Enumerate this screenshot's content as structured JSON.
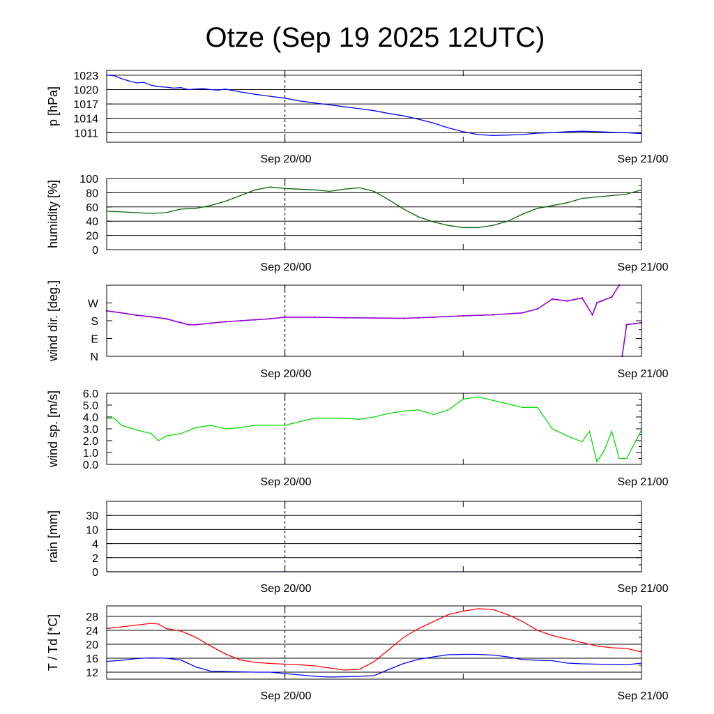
{
  "chart_data": {
    "title": "Otze (Sep 19 2025 12UTC)",
    "x_tick_labels": [
      "Sep 20/00",
      "Sep 21/00"
    ],
    "x_range_hours": [
      0,
      36
    ],
    "x_tick_hours": [
      12,
      24,
      36
    ],
    "panels": [
      {
        "id": "pressure",
        "type": "line",
        "ylabel": "p [hPa]",
        "ylim": [
          1009,
          1024
        ],
        "yticks": [
          1011,
          1014,
          1017,
          1020,
          1023
        ],
        "ytick_labels": [
          "1023",
          "1020",
          "1017",
          "1014",
          "1011"
        ],
        "ytick_values": [
          1023,
          1020,
          1017,
          1014,
          1011
        ],
        "grid": true,
        "series": [
          {
            "name": "p",
            "color": "#0000ff",
            "x": [
              0,
              0.5,
              1,
              1.5,
              2,
              2.5,
              3,
              3.5,
              4,
              4.5,
              5,
              5.5,
              6,
              6.5,
              7,
              7.5,
              8,
              9,
              10,
              11,
              12,
              13,
              14,
              15,
              16,
              17,
              18,
              19,
              20,
              21,
              22,
              23,
              24,
              25,
              26,
              27,
              28,
              29,
              30,
              31,
              32,
              33,
              34,
              35,
              36
            ],
            "values": [
              1023.0,
              1022.9,
              1022.3,
              1021.8,
              1021.4,
              1021.5,
              1020.9,
              1020.6,
              1020.5,
              1020.3,
              1020.4,
              1020.0,
              1020.1,
              1020.2,
              1020.0,
              1019.9,
              1020.1,
              1019.5,
              1019.0,
              1018.6,
              1018.2,
              1017.6,
              1017.2,
              1016.8,
              1016.4,
              1016.0,
              1015.6,
              1015.0,
              1014.5,
              1013.8,
              1013.0,
              1012.0,
              1011.2,
              1010.6,
              1010.4,
              1010.5,
              1010.6,
              1010.9,
              1011.0,
              1011.2,
              1011.3,
              1011.2,
              1011.1,
              1011.0,
              1010.8
            ]
          }
        ]
      },
      {
        "id": "humidity",
        "type": "line",
        "ylabel": "humidity [%]",
        "ylim": [
          0,
          100
        ],
        "yticks": [
          0,
          20,
          40,
          60,
          80,
          100
        ],
        "ytick_labels": [
          "100",
          "80",
          "60",
          "40",
          "20",
          "0"
        ],
        "ytick_values": [
          100,
          80,
          60,
          40,
          20,
          0
        ],
        "grid": true,
        "series": [
          {
            "name": "humidity",
            "color": "#006400",
            "x": [
              0,
              1,
              2,
              3,
              4,
              5,
              6,
              7,
              8,
              9,
              10,
              11,
              12,
              13,
              14,
              15,
              16,
              17,
              18,
              19,
              20,
              21,
              22,
              23,
              24,
              25,
              26,
              27,
              28,
              29,
              30,
              31,
              32,
              33,
              34,
              35,
              36
            ],
            "values": [
              54,
              53,
              52,
              51,
              52,
              57,
              58,
              62,
              68,
              76,
              84,
              88,
              86,
              85,
              84,
              82,
              85,
              87,
              82,
              70,
              57,
              46,
              39,
              34,
              31,
              31,
              34,
              40,
              50,
              58,
              62,
              66,
              72,
              74,
              76,
              78,
              84
            ]
          }
        ]
      },
      {
        "id": "wind-direction",
        "type": "scatter",
        "ylabel": "wind dir. [deg.]",
        "ylim": [
          0,
          360
        ],
        "yticks": [
          0,
          90,
          180,
          270
        ],
        "ytick_labels": [
          "W",
          "S",
          "E",
          "N"
        ],
        "ytick_values": [
          270,
          180,
          90,
          0
        ],
        "grid": false,
        "series": [
          {
            "name": "wind direction",
            "color": "#9400d3",
            "x": [
              0,
              1,
              2,
              3,
              4,
              5,
              5.5,
              6,
              7,
              8,
              9,
              10,
              11,
              12,
              14,
              16,
              18,
              20,
              21,
              22,
              24,
              26,
              28,
              29,
              30,
              31,
              32,
              32.7,
              32.9,
              33.0,
              33.3,
              34,
              34.5,
              34.7,
              35,
              35.5,
              36
            ],
            "values": [
              230,
              220,
              208,
              200,
              190,
              170,
              160,
              160,
              168,
              175,
              180,
              185,
              190,
              198,
              198,
              195,
              194,
              192,
              195,
              198,
              205,
              210,
              220,
              240,
              290,
              280,
              295,
              210,
              250,
              270,
              280,
              300,
              360,
              0,
              160,
              165,
              170
            ]
          }
        ]
      },
      {
        "id": "wind-speed",
        "type": "line",
        "ylabel": "wind sp. [m/s]",
        "ylim": [
          0,
          6
        ],
        "yticks": [
          0,
          1,
          2,
          3,
          4,
          5,
          6
        ],
        "ytick_labels": [
          "6.0",
          "5.0",
          "4.0",
          "3.0",
          "2.0",
          "1.0",
          "0.0"
        ],
        "ytick_values": [
          6,
          5,
          4,
          3,
          2,
          1,
          0
        ],
        "grid": false,
        "series": [
          {
            "name": "wind speed",
            "color": "#00dd00",
            "x": [
              0,
              0.5,
              1,
              2,
              3,
              3.5,
              4,
              5,
              6,
              7,
              8,
              9,
              10,
              11,
              12,
              13,
              14,
              15,
              16,
              17,
              18,
              19,
              20,
              21,
              22,
              23,
              24,
              25,
              26,
              27,
              28,
              29,
              30,
              31,
              32,
              32.5,
              33,
              33.5,
              34,
              34.5,
              35,
              36
            ],
            "values": [
              3.9,
              3.9,
              3.3,
              2.9,
              2.6,
              2.0,
              2.4,
              2.6,
              3.1,
              3.3,
              3.0,
              3.1,
              3.3,
              3.3,
              3.3,
              3.6,
              3.9,
              3.9,
              3.9,
              3.8,
              4.0,
              4.3,
              4.5,
              4.6,
              4.2,
              4.6,
              5.5,
              5.7,
              5.4,
              5.1,
              4.8,
              4.8,
              3.0,
              2.4,
              1.9,
              2.8,
              0.2,
              1.2,
              2.8,
              0.5,
              0.5,
              2.9
            ]
          }
        ]
      },
      {
        "id": "rain",
        "type": "line",
        "ylabel": "rain [mm]",
        "ylim": [
          0,
          5
        ],
        "yticks": [
          0,
          1,
          2,
          3,
          4
        ],
        "ytick_labels": [
          "30",
          "10",
          "4",
          "2",
          "0"
        ],
        "ytick_values": [
          4,
          3,
          2,
          1,
          0
        ],
        "grid": true,
        "series": [
          {
            "name": "rain",
            "color": "#00008b",
            "x": [
              0,
              36
            ],
            "values": [
              0,
              0
            ]
          }
        ]
      },
      {
        "id": "temperature",
        "type": "line",
        "ylabel": "T / Td [*C]",
        "ylim": [
          10,
          31
        ],
        "yticks": [
          12,
          16,
          20,
          24,
          28
        ],
        "ytick_labels": [
          "28",
          "24",
          "20",
          "16",
          "12"
        ],
        "ytick_values": [
          28,
          24,
          20,
          16,
          12
        ],
        "grid": true,
        "series": [
          {
            "name": "T",
            "color": "#ff0000",
            "x": [
              0,
              1,
              2,
              3,
              3.5,
              4,
              5,
              6,
              7,
              8,
              9,
              10,
              11,
              12,
              13,
              14,
              15,
              16,
              17,
              18,
              19,
              20,
              21,
              22,
              23,
              24,
              25,
              26,
              27,
              28,
              29,
              30,
              31,
              32,
              33,
              34,
              35,
              36
            ],
            "values": [
              24.5,
              25.0,
              25.5,
              26.0,
              25.8,
              24.5,
              23.8,
              22.0,
              19.5,
              17.2,
              15.5,
              14.8,
              14.5,
              14.3,
              14.1,
              13.8,
              13.2,
              12.6,
              12.8,
              15.0,
              18.5,
              22.0,
              24.5,
              26.5,
              28.5,
              29.5,
              30.2,
              30.0,
              28.5,
              26.5,
              24.0,
              22.5,
              21.5,
              20.5,
              19.5,
              19.0,
              18.8,
              17.8
            ]
          },
          {
            "name": "Td",
            "color": "#0000ff",
            "x": [
              0,
              1,
              2,
              3,
              4,
              5,
              6,
              7,
              8,
              9,
              10,
              11,
              12,
              13,
              14,
              15,
              16,
              17,
              18,
              19,
              20,
              21,
              22,
              23,
              24,
              25,
              26,
              27,
              28,
              29,
              30,
              31,
              32,
              33,
              34,
              35,
              36
            ],
            "values": [
              15.1,
              15.4,
              15.9,
              16.1,
              16.0,
              15.5,
              13.5,
              12.3,
              12.2,
              12.1,
              12.0,
              12.0,
              11.6,
              11.2,
              10.8,
              10.6,
              10.7,
              10.8,
              11.0,
              12.8,
              14.5,
              15.7,
              16.4,
              17.0,
              17.1,
              17.1,
              16.9,
              16.4,
              15.6,
              15.4,
              15.3,
              14.6,
              14.4,
              14.3,
              14.2,
              14.1,
              14.6
            ]
          }
        ]
      }
    ]
  }
}
